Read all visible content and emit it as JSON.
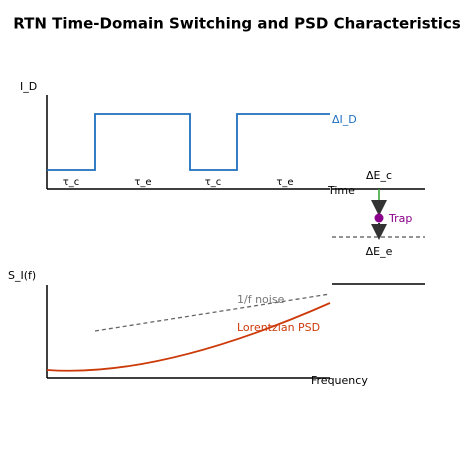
{
  "title": "RTN Time-Domain Switching and PSD Characteristics",
  "time_panel": {
    "y_label": "I_D",
    "delta_label": "ΔI_D",
    "intervals": [
      "τ_c",
      "τ_e",
      "τ_c",
      "τ_e"
    ],
    "x_label": "Time"
  },
  "energy_panel": {
    "upper_label": "ΔE_c",
    "trap_label": "Trap",
    "lower_label": "ΔE_e"
  },
  "psd_panel": {
    "y_label": "S_I(f)",
    "noise_label": "1/f noise",
    "lorentzian_label": "Lorentzian PSD",
    "x_label": "Frequency"
  }
}
